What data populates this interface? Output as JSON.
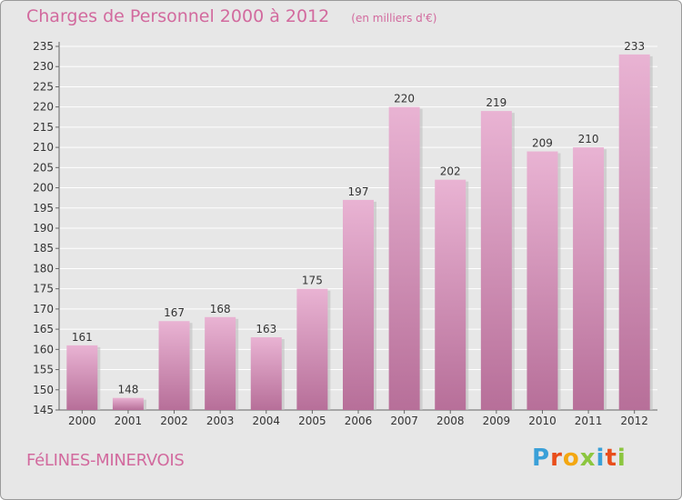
{
  "header": {
    "title": "Charges de Personnel 2000 à 2012",
    "unit": "(en milliers d'€)"
  },
  "footer": {
    "place": "FéLINES-MINERVOIS",
    "logo_letters": [
      "P",
      "r",
      "o",
      "x",
      "i",
      "t",
      "i"
    ],
    "logo_colors": [
      "#3aa0d8",
      "#e94e1b",
      "#f3a712",
      "#8cc63f",
      "#3aa0d8",
      "#e94e1b",
      "#8cc63f"
    ]
  },
  "colors": {
    "bar_top": "#e9b3d3",
    "bar_bottom": "#b76f99",
    "accent": "#d26a9e"
  },
  "chart_data": {
    "type": "bar",
    "title": "Charges de Personnel 2000 à 2012",
    "categories": [
      "2000",
      "2001",
      "2002",
      "2003",
      "2004",
      "2005",
      "2006",
      "2007",
      "2008",
      "2009",
      "2010",
      "2011",
      "2012"
    ],
    "values": [
      161,
      148,
      167,
      168,
      163,
      175,
      197,
      220,
      202,
      219,
      209,
      210,
      233
    ],
    "xlabel": "",
    "ylabel": "",
    "ylim": [
      145,
      235
    ],
    "yticks": [
      145,
      150,
      155,
      160,
      165,
      170,
      175,
      180,
      185,
      190,
      195,
      200,
      205,
      210,
      215,
      220,
      225,
      230,
      235
    ],
    "grid": true,
    "legend": "none"
  }
}
